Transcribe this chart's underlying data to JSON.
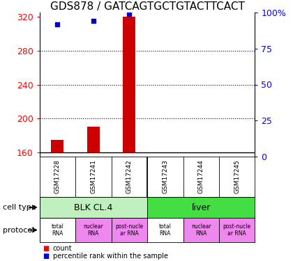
{
  "title": "GDS878 / GATCAGTGCTGTACTTCACT",
  "samples": [
    "GSM17228",
    "GSM17241",
    "GSM17242",
    "GSM17243",
    "GSM17244",
    "GSM17245"
  ],
  "red_counts": [
    175,
    190,
    320,
    160,
    160,
    160
  ],
  "blue_percentiles": [
    92,
    94,
    99,
    null,
    null,
    null
  ],
  "ylim_left": [
    155,
    325
  ],
  "ylim_right": [
    0,
    100
  ],
  "yticks_left": [
    160,
    200,
    240,
    280,
    320
  ],
  "yticks_right": [
    0,
    25,
    50,
    75,
    100
  ],
  "ytick_right_labels": [
    "0",
    "25",
    "50",
    "75",
    "100%"
  ],
  "cell_types": [
    {
      "label": "BLK CL.4",
      "cols": [
        0,
        1,
        2
      ],
      "color": "#c0f0c0"
    },
    {
      "label": "liver",
      "cols": [
        3,
        4,
        5
      ],
      "color": "#44dd44"
    }
  ],
  "protocols": [
    {
      "label": "total\nRNA",
      "col": 0,
      "color": "#ffffff"
    },
    {
      "label": "nuclear\nRNA",
      "col": 1,
      "color": "#ee88ee"
    },
    {
      "label": "post-nucle\nar RNA",
      "col": 2,
      "color": "#ee88ee"
    },
    {
      "label": "total\nRNA",
      "col": 3,
      "color": "#ffffff"
    },
    {
      "label": "nuclear\nRNA",
      "col": 4,
      "color": "#ee88ee"
    },
    {
      "label": "post-nucle\nar RNA",
      "col": 5,
      "color": "#ee88ee"
    }
  ],
  "bar_color": "#cc0000",
  "dot_color": "#0000cc",
  "baseline": 160,
  "bar_width": 0.35
}
